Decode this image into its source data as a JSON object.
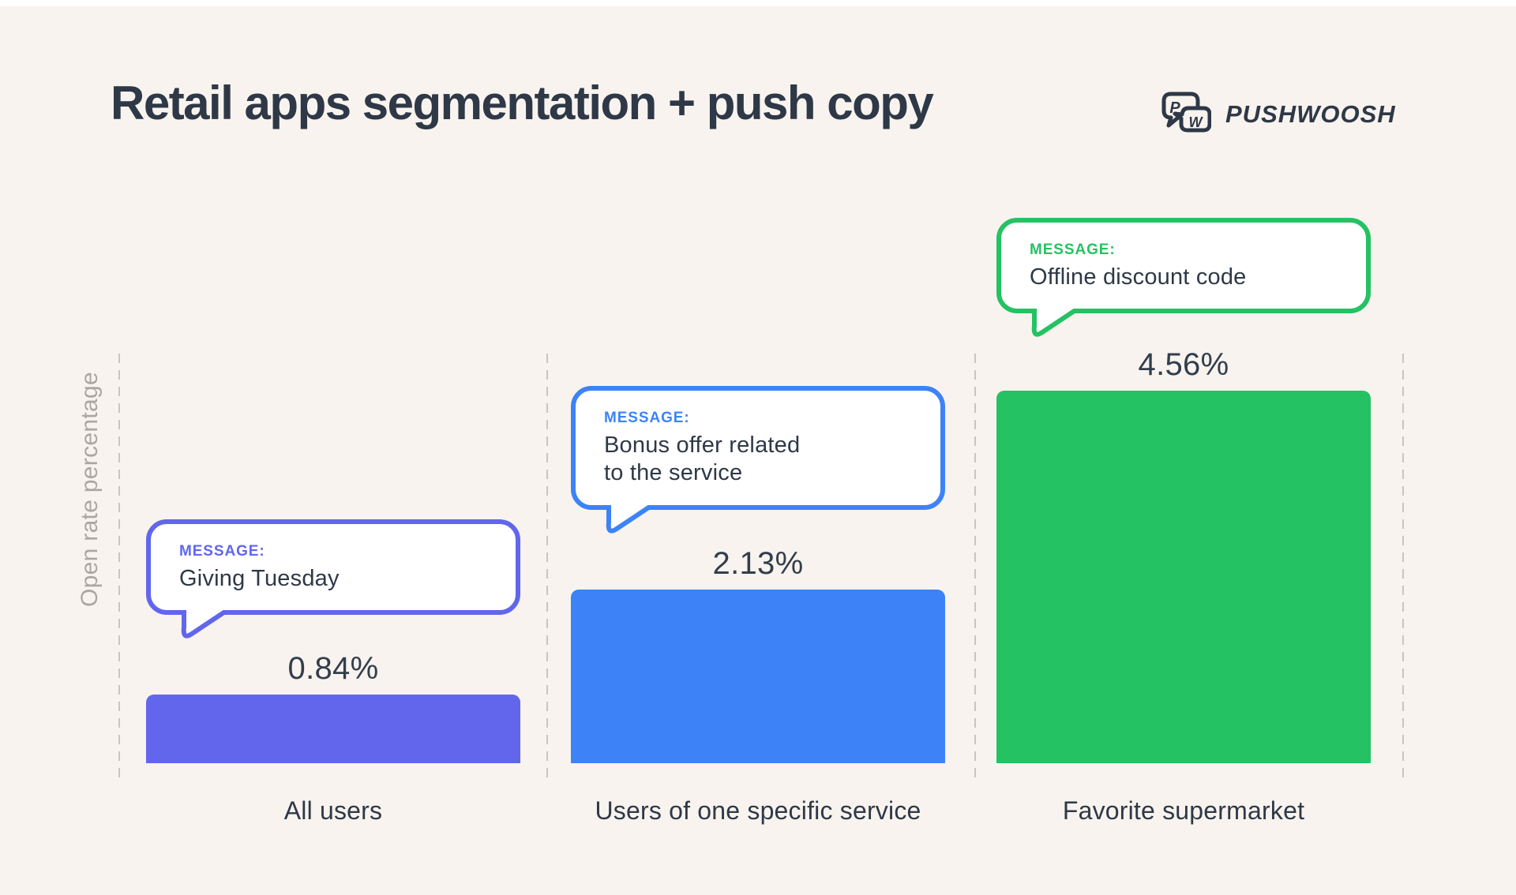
{
  "title": "Retail apps segmentation + push copy",
  "logo": {
    "brand": "PUSHWOOSH",
    "icon_letters": {
      "p": "P",
      "w": "W"
    }
  },
  "colors": {
    "background": "#f8f3ee",
    "heading": "#2e3847",
    "purple": "#6166ed",
    "blue": "#3d83f7",
    "green": "#24c263",
    "axis_label_gray": "#a9a7a3",
    "dashed_line_gray": "#c8c5c1",
    "bubble_fill": "#ffffff"
  },
  "chart_data": {
    "type": "bar",
    "title": "Retail apps segmentation + push copy",
    "xlabel": "",
    "ylabel": "Open rate percentage",
    "categories": [
      "All users",
      "Users of one specific service",
      "Favorite supermarket"
    ],
    "values": [
      0.84,
      2.13,
      4.56
    ],
    "value_labels": [
      "0.84%",
      "2.13%",
      "4.56%"
    ],
    "ylim": [
      0,
      5
    ],
    "grid": "vertical-dashed-separators",
    "legend": "none",
    "bar_colors": [
      "#6166ed",
      "#3d83f7",
      "#24c263"
    ],
    "annotations": [
      {
        "label": "MESSAGE:",
        "text": "Giving Tuesday",
        "color": "#6166ed"
      },
      {
        "label": "MESSAGE:",
        "text": "Bonus offer related\nto the service",
        "color": "#3d83f7"
      },
      {
        "label": "MESSAGE:",
        "text": "Offline discount code",
        "color": "#24c263"
      }
    ]
  }
}
